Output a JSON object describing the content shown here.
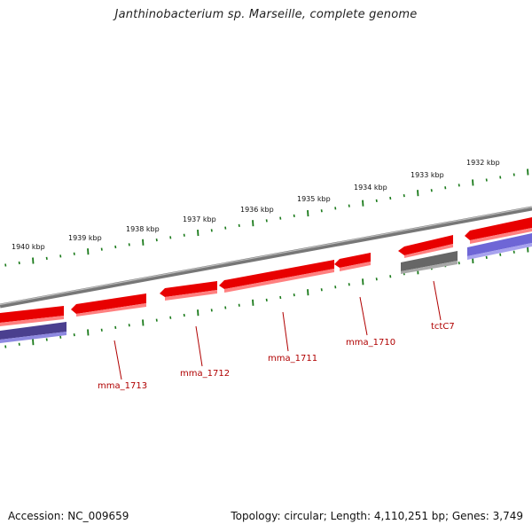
{
  "title": "Janthinobacterium sp. Marseille, complete genome",
  "footer": {
    "accession": "Accession: NC_009659",
    "topology": "Topology: circular; Length: 4,110,251 bp; Genes: 3,749"
  },
  "colors": {
    "tick": "#1a7a1a",
    "forward_gene": "#ee0000",
    "forward_gene_light": "#ff8080",
    "reverse_gene": "#4a3f8f",
    "reverse_gene_light": "#8d88e0",
    "reverse_gene_grey": "#666666",
    "backbone": "#777777",
    "label": "#b00000"
  },
  "scale_labels": [
    "1940 kbp",
    "1939 kbp",
    "1938 kbp",
    "1937 kbp",
    "1936 kbp",
    "1935 kbp",
    "1934 kbp",
    "1933 kbp",
    "1932 kbp"
  ],
  "gene_labels": [
    "mma_1713",
    "mma_1712",
    "mma_1711",
    "mma_1710",
    "tctC7"
  ]
}
